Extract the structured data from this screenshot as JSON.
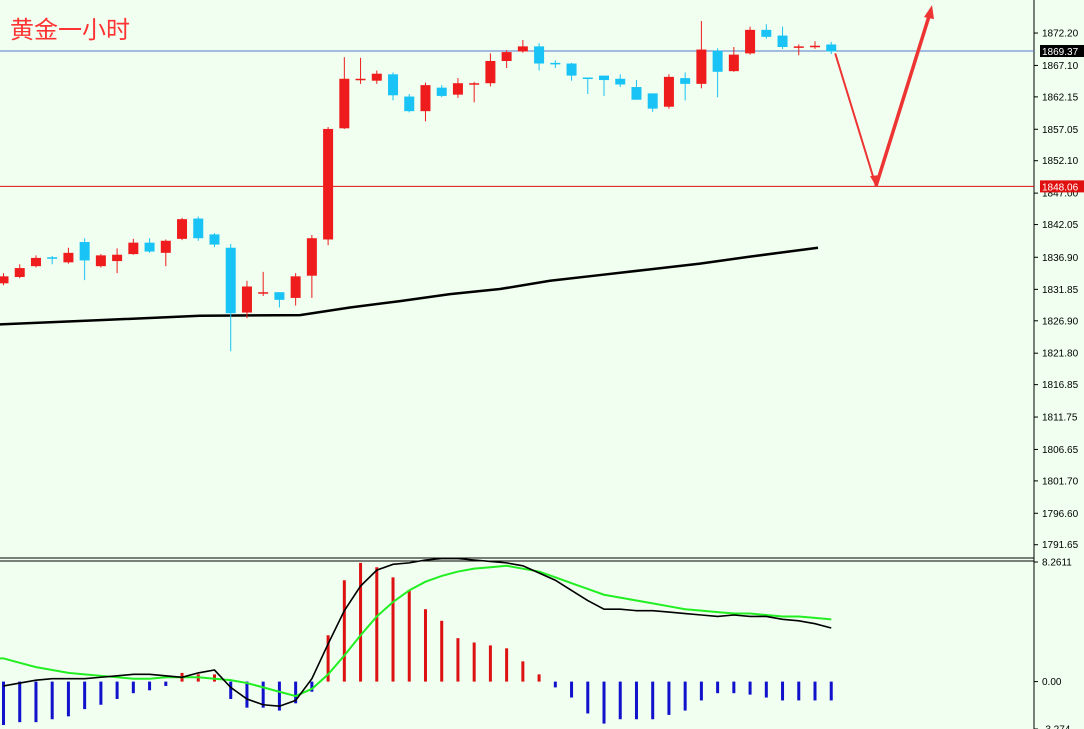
{
  "title": "黄金一小时",
  "chart_data": [
    {
      "type": "candlestick",
      "title": "黄金一小时",
      "ylim": [
        1789.56,
        1877.4
      ],
      "ticks": [
        "1872.20",
        "1867.10",
        "1862.15",
        "1857.05",
        "1852.10",
        "1847.00",
        "1842.05",
        "1836.90",
        "1831.85",
        "1826.90",
        "1821.80",
        "1816.85",
        "1811.75",
        "1806.65",
        "1801.70",
        "1796.60",
        "1791.65"
      ],
      "current_price": 1869.37,
      "current_price_label": "1869.37",
      "level_price": 1848.06,
      "level_price_label": "1848.06",
      "colors": {
        "bull": "#ee1c1c",
        "bear": "#19c3f5",
        "ma": "#000000",
        "level": "#e01010",
        "current": "#5577cc",
        "arrow": "#ee3333"
      },
      "candles": [
        [
          1832.8,
          1834.4,
          1832.5,
          1833.9
        ],
        [
          1833.8,
          1835.8,
          1833.6,
          1835.2
        ],
        [
          1835.5,
          1837.2,
          1835.3,
          1836.8
        ],
        [
          1836.9,
          1837.1,
          1835.8,
          1836.7
        ],
        [
          1836.1,
          1838.4,
          1835.9,
          1837.6
        ],
        [
          1839.3,
          1839.9,
          1833.3,
          1836.4
        ],
        [
          1835.5,
          1837.4,
          1835.3,
          1837.2
        ],
        [
          1836.3,
          1838.3,
          1834.4,
          1837.3
        ],
        [
          1837.4,
          1839.8,
          1837.3,
          1839.2
        ],
        [
          1839.2,
          1839.9,
          1837.6,
          1837.8
        ],
        [
          1837.6,
          1839.7,
          1835.5,
          1839.5
        ],
        [
          1839.8,
          1843.1,
          1839.6,
          1842.9
        ],
        [
          1843.0,
          1843.3,
          1839.5,
          1839.9
        ],
        [
          1840.5,
          1840.7,
          1838.5,
          1838.9
        ],
        [
          1838.4,
          1839.0,
          1822.1,
          1828.1
        ],
        [
          1828.2,
          1833.2,
          1827.3,
          1832.3
        ],
        [
          1831.4,
          1834.6,
          1830.8,
          1831.4
        ],
        [
          1831.4,
          1831.4,
          1829.0,
          1830.2
        ],
        [
          1830.5,
          1834.4,
          1829.3,
          1833.9
        ],
        [
          1834.0,
          1840.4,
          1830.5,
          1839.9
        ],
        [
          1839.7,
          1857.4,
          1838.8,
          1857.1
        ],
        [
          1857.2,
          1868.4,
          1857.1,
          1865.0
        ],
        [
          1864.8,
          1868.3,
          1864.2,
          1865.0
        ],
        [
          1864.7,
          1866.3,
          1864.2,
          1865.8
        ],
        [
          1865.7,
          1866.0,
          1861.6,
          1862.4
        ],
        [
          1862.2,
          1862.6,
          1859.7,
          1859.9
        ],
        [
          1859.9,
          1864.4,
          1858.3,
          1864.0
        ],
        [
          1863.6,
          1864.0,
          1862.1,
          1862.3
        ],
        [
          1862.5,
          1865.1,
          1862.0,
          1864.3
        ],
        [
          1864.3,
          1864.5,
          1861.3,
          1864.3
        ],
        [
          1864.3,
          1869.0,
          1863.8,
          1867.8
        ],
        [
          1867.8,
          1869.5,
          1866.7,
          1869.2
        ],
        [
          1869.3,
          1871.1,
          1869.1,
          1870.1
        ],
        [
          1870.1,
          1870.6,
          1866.3,
          1867.4
        ],
        [
          1867.5,
          1867.9,
          1866.7,
          1867.4
        ],
        [
          1867.4,
          1867.5,
          1864.7,
          1865.5
        ],
        [
          1865.2,
          1865.2,
          1862.6,
          1865.0
        ],
        [
          1865.5,
          1865.5,
          1862.3,
          1864.8
        ],
        [
          1865.0,
          1865.7,
          1863.7,
          1864.1
        ],
        [
          1863.7,
          1864.8,
          1861.7,
          1861.7
        ],
        [
          1862.7,
          1862.7,
          1859.8,
          1860.3
        ],
        [
          1860.6,
          1865.7,
          1860.3,
          1865.3
        ],
        [
          1865.1,
          1866.0,
          1861.6,
          1864.2
        ],
        [
          1864.2,
          1874.1,
          1863.5,
          1869.6
        ],
        [
          1869.4,
          1869.8,
          1862.1,
          1866.1
        ],
        [
          1866.2,
          1870.0,
          1866.1,
          1868.8
        ],
        [
          1869.0,
          1873.2,
          1868.8,
          1872.7
        ],
        [
          1872.7,
          1873.6,
          1871.3,
          1871.6
        ],
        [
          1871.8,
          1873.2,
          1869.7,
          1870.0
        ],
        [
          1869.9,
          1870.4,
          1868.7,
          1870.1
        ],
        [
          1870.2,
          1870.9,
          1869.7,
          1870.2
        ],
        [
          1870.4,
          1870.8,
          1868.9,
          1869.3
        ]
      ],
      "ma": [
        [
          -20,
          1826.2
        ],
        [
          100,
          1827.0
        ],
        [
          200,
          1827.7
        ],
        [
          300,
          1827.8
        ],
        [
          350,
          1829.0
        ],
        [
          400,
          1830.0
        ],
        [
          450,
          1831.1
        ],
        [
          500,
          1831.9
        ],
        [
          550,
          1833.2
        ],
        [
          600,
          1834.1
        ],
        [
          650,
          1835.0
        ],
        [
          700,
          1835.9
        ],
        [
          750,
          1837.0
        ],
        [
          818,
          1838.4
        ]
      ],
      "forecast_path": [
        [
          1869.0,
          1848.1,
          1876.6
        ]
      ]
    },
    {
      "type": "macd",
      "ylim": [
        -3.274,
        8.2611
      ],
      "ticks": [
        "8.2611",
        "0.00",
        "-3.274"
      ],
      "colors": {
        "positive": "#dd1111",
        "negative": "#1111cc",
        "macd": "#000000",
        "signal": "#22ee22"
      },
      "hist": [
        -3.0,
        -2.8,
        -2.8,
        -2.6,
        -2.4,
        -1.9,
        -1.6,
        -1.2,
        -0.8,
        -0.6,
        -0.3,
        0.6,
        0.5,
        0.5,
        -1.2,
        -1.8,
        -1.8,
        -2.0,
        -1.5,
        -0.7,
        3.2,
        7.0,
        8.2,
        7.9,
        7.2,
        6.3,
        5.0,
        4.2,
        3.0,
        2.7,
        2.5,
        2.3,
        1.4,
        0.5,
        -0.4,
        -1.1,
        -2.2,
        -2.9,
        -2.6,
        -2.6,
        -2.6,
        -2.3,
        -2.0,
        -1.3,
        -0.8,
        -0.8,
        -0.9,
        -1.1,
        -1.3,
        -1.3,
        -1.3,
        -1.3
      ],
      "macd": [
        -0.3,
        -0.1,
        0.1,
        0.2,
        0.2,
        0.2,
        0.3,
        0.4,
        0.5,
        0.5,
        0.4,
        0.3,
        0.6,
        0.8,
        -0.4,
        -1.2,
        -1.6,
        -1.7,
        -1.3,
        0.2,
        2.6,
        4.9,
        6.6,
        7.7,
        8.1,
        8.2,
        8.4,
        8.5,
        8.5,
        8.4,
        8.3,
        8.2,
        8.0,
        7.5,
        7.0,
        6.3,
        5.6,
        5.0,
        5.0,
        4.9,
        4.9,
        4.8,
        4.7,
        4.6,
        4.5,
        4.6,
        4.5,
        4.5,
        4.3,
        4.2,
        4.0,
        3.7
      ],
      "signal": [
        1.6,
        1.3,
        1.0,
        0.8,
        0.6,
        0.5,
        0.4,
        0.3,
        0.2,
        0.2,
        0.3,
        0.3,
        0.3,
        0.2,
        0.1,
        -0.1,
        -0.4,
        -0.7,
        -1.0,
        -0.5,
        0.5,
        1.8,
        3.2,
        4.5,
        5.5,
        6.3,
        6.9,
        7.3,
        7.6,
        7.8,
        7.9,
        8.0,
        7.8,
        7.6,
        7.2,
        6.8,
        6.4,
        6.0,
        5.8,
        5.6,
        5.4,
        5.2,
        5.0,
        4.9,
        4.8,
        4.7,
        4.7,
        4.6,
        4.5,
        4.5,
        4.4,
        4.3
      ]
    }
  ]
}
